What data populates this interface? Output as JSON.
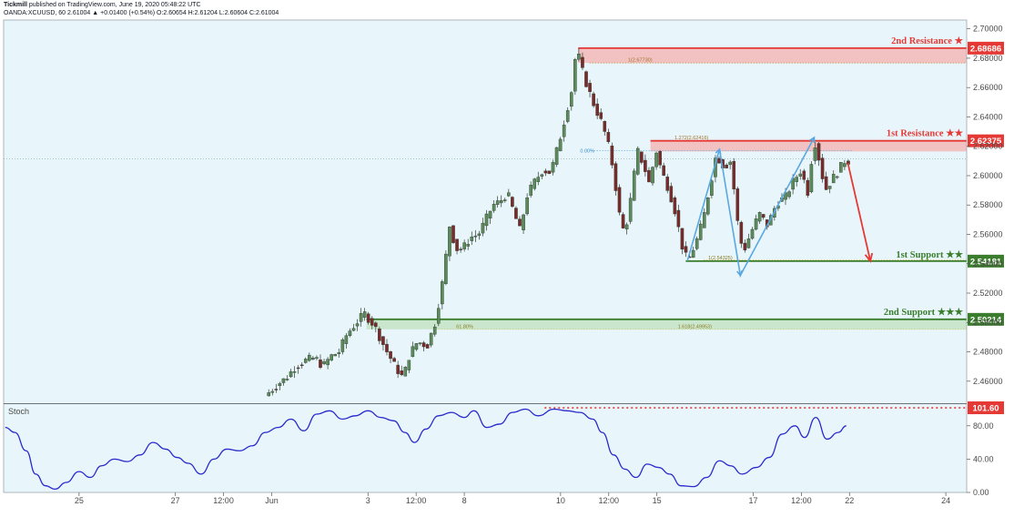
{
  "header": {
    "line1_brand": "Tickmill",
    "line1_rest": " published on TradingView.com, June 19, 2020 05:48:22 UTC",
    "line2": "OANDA:XCUUSD, 60  2.61004  ▲ +0.01400 (+0.54%)  O:2.60654  H:2.61204  L:2.60604  C:2.61004"
  },
  "colors": {
    "background": "#e8f6fb",
    "candle_up": "#5b8a5b",
    "candle_down": "#7a2a2a",
    "resistance": "#e53935",
    "resistance_fill": "#f3b8b8",
    "support": "#3a7d2c",
    "support_fill": "#c7e5c9",
    "projection": "#5aa8e0",
    "forecast_arrow": "#e53935",
    "stoch_line": "#2a2acd",
    "stoch_max_line": "#e53935"
  },
  "chart_data": {
    "type": "candlestick",
    "symbol": "OANDA:XCUUSD",
    "timeframe": "60",
    "ylim": [
      2.445,
      2.706
    ],
    "y_ticks": [
      "2.70000",
      "2.68000",
      "2.66000",
      "2.64000",
      "2.62000",
      "2.60000",
      "2.58000",
      "2.56000",
      "2.54000",
      "2.52000",
      "2.50000",
      "2.48000",
      "2.46000"
    ],
    "x_ticks": [
      {
        "label": "25",
        "t": 3
      },
      {
        "label": "27",
        "t": 9
      },
      {
        "label": "12:00",
        "t": 12
      },
      {
        "label": "Jun",
        "t": 15
      },
      {
        "label": "3",
        "t": 21
      },
      {
        "label": "12:00",
        "t": 24
      },
      {
        "label": "8",
        "t": 27
      },
      {
        "label": "10",
        "t": 33
      },
      {
        "label": "12:00",
        "t": 36
      },
      {
        "label": "15",
        "t": 39
      },
      {
        "label": "17",
        "t": 45
      },
      {
        "label": "12:00",
        "t": 48
      },
      {
        "label": "22",
        "t": 51
      },
      {
        "label": "24",
        "t": 57
      }
    ],
    "price_anchors": [
      [
        14.7,
        2.45
      ],
      [
        15.5,
        2.458
      ],
      [
        16.0,
        2.462
      ],
      [
        16.6,
        2.47
      ],
      [
        17.2,
        2.474
      ],
      [
        17.8,
        2.476
      ],
      [
        18.3,
        2.47
      ],
      [
        18.8,
        2.477
      ],
      [
        19.3,
        2.48
      ],
      [
        19.8,
        2.492
      ],
      [
        20.4,
        2.5
      ],
      [
        20.9,
        2.506
      ],
      [
        21.5,
        2.498
      ],
      [
        22.2,
        2.482
      ],
      [
        22.8,
        2.47
      ],
      [
        23.3,
        2.462
      ],
      [
        23.7,
        2.478
      ],
      [
        24.2,
        2.487
      ],
      [
        24.8,
        2.484
      ],
      [
        25.3,
        2.5
      ],
      [
        25.8,
        2.53
      ],
      [
        26.2,
        2.566
      ],
      [
        26.6,
        2.55
      ],
      [
        27.0,
        2.55
      ],
      [
        27.5,
        2.558
      ],
      [
        28.0,
        2.56
      ],
      [
        28.5,
        2.571
      ],
      [
        28.9,
        2.58
      ],
      [
        29.3,
        2.582
      ],
      [
        29.8,
        2.588
      ],
      [
        30.2,
        2.575
      ],
      [
        30.6,
        2.562
      ],
      [
        31.0,
        2.586
      ],
      [
        31.5,
        2.596
      ],
      [
        32.0,
        2.604
      ],
      [
        32.5,
        2.602
      ],
      [
        33.0,
        2.622
      ],
      [
        33.4,
        2.64
      ],
      [
        33.8,
        2.658
      ],
      [
        34.1,
        2.687
      ],
      [
        34.5,
        2.67
      ],
      [
        34.8,
        2.66
      ],
      [
        35.2,
        2.648
      ],
      [
        35.6,
        2.638
      ],
      [
        36.0,
        2.625
      ],
      [
        36.4,
        2.604
      ],
      [
        36.8,
        2.572
      ],
      [
        37.1,
        2.56
      ],
      [
        37.5,
        2.585
      ],
      [
        37.9,
        2.617
      ],
      [
        38.3,
        2.607
      ],
      [
        38.7,
        2.592
      ],
      [
        39.0,
        2.62
      ],
      [
        39.4,
        2.603
      ],
      [
        39.8,
        2.592
      ],
      [
        40.2,
        2.578
      ],
      [
        40.5,
        2.562
      ],
      [
        40.8,
        2.546
      ],
      [
        41.1,
        2.543
      ],
      [
        41.6,
        2.556
      ],
      [
        42.0,
        2.57
      ],
      [
        42.4,
        2.592
      ],
      [
        42.8,
        2.614
      ],
      [
        43.3,
        2.606
      ],
      [
        43.7,
        2.61
      ],
      [
        44.0,
        2.583
      ],
      [
        44.2,
        2.562
      ],
      [
        44.5,
        2.548
      ],
      [
        45.0,
        2.562
      ],
      [
        45.5,
        2.574
      ],
      [
        46.0,
        2.566
      ],
      [
        46.6,
        2.582
      ],
      [
        47.1,
        2.585
      ],
      [
        47.6,
        2.596
      ],
      [
        48.1,
        2.604
      ],
      [
        48.5,
        2.588
      ],
      [
        48.9,
        2.625
      ],
      [
        49.2,
        2.612
      ],
      [
        49.6,
        2.59
      ],
      [
        50.0,
        2.597
      ],
      [
        50.4,
        2.603
      ],
      [
        50.8,
        2.61
      ]
    ],
    "stochastic": {
      "label": "Stoch",
      "ylim": [
        0,
        106
      ],
      "y_ticks": [
        "80.00",
        "40.00",
        "0.00"
      ],
      "max_label": "101.60",
      "max_value": 101.6,
      "points": [
        [
          -1.6,
          78
        ],
        [
          -1.0,
          72
        ],
        [
          -0.3,
          50
        ],
        [
          0.3,
          22
        ],
        [
          0.9,
          8
        ],
        [
          1.5,
          4
        ],
        [
          2.2,
          12
        ],
        [
          3.0,
          25
        ],
        [
          3.7,
          18
        ],
        [
          4.4,
          32
        ],
        [
          5.2,
          40
        ],
        [
          6.0,
          37
        ],
        [
          6.8,
          45
        ],
        [
          7.6,
          60
        ],
        [
          8.4,
          52
        ],
        [
          9.1,
          42
        ],
        [
          9.8,
          35
        ],
        [
          10.6,
          22
        ],
        [
          11.4,
          40
        ],
        [
          12.2,
          52
        ],
        [
          13.0,
          50
        ],
        [
          13.8,
          56
        ],
        [
          14.6,
          72
        ],
        [
          15.4,
          78
        ],
        [
          16.2,
          88
        ],
        [
          17.0,
          74
        ],
        [
          17.8,
          94
        ],
        [
          18.6,
          98
        ],
        [
          19.4,
          88
        ],
        [
          20.2,
          92
        ],
        [
          21.0,
          98
        ],
        [
          21.8,
          90
        ],
        [
          22.6,
          86
        ],
        [
          23.3,
          72
        ],
        [
          23.9,
          60
        ],
        [
          24.6,
          76
        ],
        [
          25.4,
          92
        ],
        [
          26.2,
          96
        ],
        [
          27.0,
          90
        ],
        [
          27.6,
          98
        ],
        [
          28.4,
          78
        ],
        [
          29.2,
          82
        ],
        [
          30.0,
          96
        ],
        [
          30.8,
          100
        ],
        [
          31.6,
          92
        ],
        [
          32.6,
          100
        ],
        [
          33.4,
          98
        ],
        [
          34.2,
          96
        ],
        [
          35.0,
          88
        ],
        [
          35.6,
          72
        ],
        [
          36.3,
          45
        ],
        [
          37.0,
          28
        ],
        [
          37.7,
          18
        ],
        [
          38.4,
          34
        ],
        [
          39.1,
          30
        ],
        [
          39.8,
          22
        ],
        [
          40.5,
          8
        ],
        [
          41.3,
          7
        ],
        [
          42.1,
          18
        ],
        [
          42.9,
          38
        ],
        [
          43.6,
          32
        ],
        [
          44.3,
          22
        ],
        [
          45.2,
          30
        ],
        [
          46.0,
          42
        ],
        [
          46.8,
          70
        ],
        [
          47.6,
          80
        ],
        [
          48.2,
          66
        ],
        [
          48.9,
          90
        ],
        [
          49.6,
          64
        ],
        [
          50.3,
          72
        ],
        [
          50.8,
          80
        ]
      ]
    },
    "zones": [
      {
        "name": "2nd Resistance ★",
        "price_label": "2.68686",
        "top": 2.68686,
        "bottom": 2.6768,
        "fib_label": "1(2.67730)",
        "kind": "resistance"
      },
      {
        "name": "1st Resistance ★★",
        "price_label": "2.62375",
        "top": 2.62375,
        "bottom": 2.6165,
        "fib_label": "1.272(2.62416)",
        "kind": "resistance"
      },
      {
        "name": "1st Support ★★",
        "price_label": "2.54181",
        "value": 2.54181,
        "fib_label": "1(2.54325)",
        "kind": "support"
      },
      {
        "name": "2nd Support ★★★",
        "price_label": "2.50214",
        "top": 2.50214,
        "bottom": 2.4953,
        "fib_label": "1.618(2.49953)",
        "fib_left_label": "61.80%",
        "kind": "support"
      }
    ],
    "guide_labels": {
      "fib_100": "0.00%"
    }
  }
}
